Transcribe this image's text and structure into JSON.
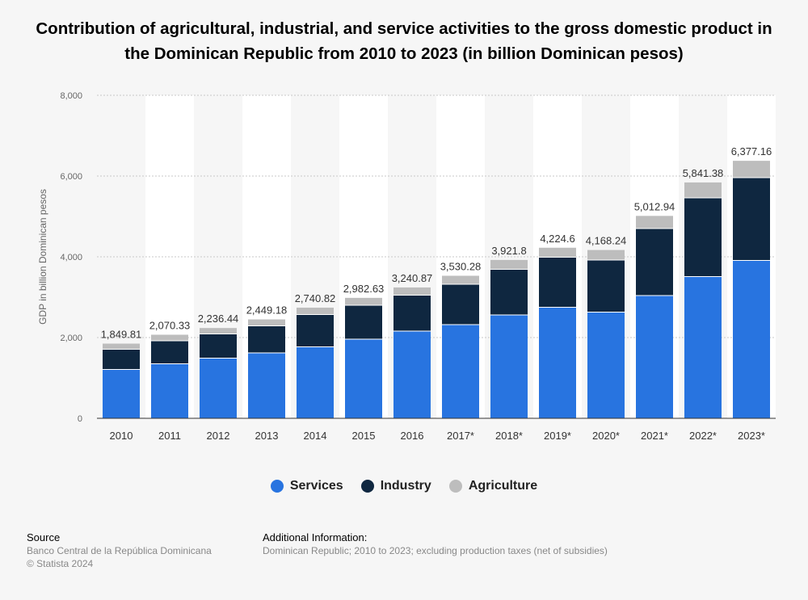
{
  "chart_data": {
    "type": "bar",
    "stacked": true,
    "title": "Contribution of agricultural, industrial, and service activities to the gross domestic product in the Dominican Republic from 2010 to 2023 (in billion Dominican pesos)",
    "ylabel": "GDP in billion Dominican pesos",
    "xlabel": "",
    "ylim": [
      0,
      8000
    ],
    "yticks": [
      0,
      2000,
      4000,
      6000,
      8000
    ],
    "ytick_labels": [
      "0",
      "2,000",
      "4,000",
      "6,000",
      "8,000"
    ],
    "grid": true,
    "legend_position": "bottom-center",
    "categories": [
      "2010",
      "2011",
      "2012",
      "2013",
      "2014",
      "2015",
      "2016",
      "2017*",
      "2018*",
      "2019*",
      "2020*",
      "2021*",
      "2022*",
      "2023*"
    ],
    "totals": [
      1849.81,
      2070.33,
      2236.44,
      2449.18,
      2740.82,
      2982.63,
      3240.87,
      3530.28,
      3921.8,
      4224.6,
      4168.24,
      5012.94,
      5841.38,
      6377.16
    ],
    "total_labels": [
      "1,849.81",
      "2,070.33",
      "2,236.44",
      "2,449.18",
      "2,740.82",
      "2,982.63",
      "3,240.87",
      "3,530.28",
      "3,921.8",
      "4,224.6",
      "4,168.24",
      "5,012.94",
      "5,841.38",
      "6,377.16"
    ],
    "series": [
      {
        "name": "Services",
        "color": "#2874e0",
        "values": [
          1210,
          1350,
          1490,
          1620,
          1770,
          1960,
          2160,
          2320,
          2560,
          2750,
          2630,
          3040,
          3510,
          3910
        ]
      },
      {
        "name": "Industry",
        "color": "#0f2740",
        "values": [
          500,
          570,
          600,
          670,
          800,
          840,
          890,
          1000,
          1130,
          1240,
          1290,
          1660,
          1950,
          2050
        ]
      },
      {
        "name": "Agriculture",
        "color": "#bdbdbd",
        "values": [
          139.81,
          150.33,
          146.44,
          159.18,
          170.82,
          182.63,
          190.87,
          210.28,
          231.8,
          234.6,
          248.24,
          312.94,
          381.38,
          417.16
        ]
      }
    ]
  },
  "footer": {
    "source_heading": "Source",
    "source_line1": "Banco Central de la República Dominicana",
    "source_line2": "© Statista 2024",
    "info_heading": "Additional Information:",
    "info_line1": "Dominican Republic; 2010 to 2023; excluding production taxes (net of subsidies)"
  }
}
